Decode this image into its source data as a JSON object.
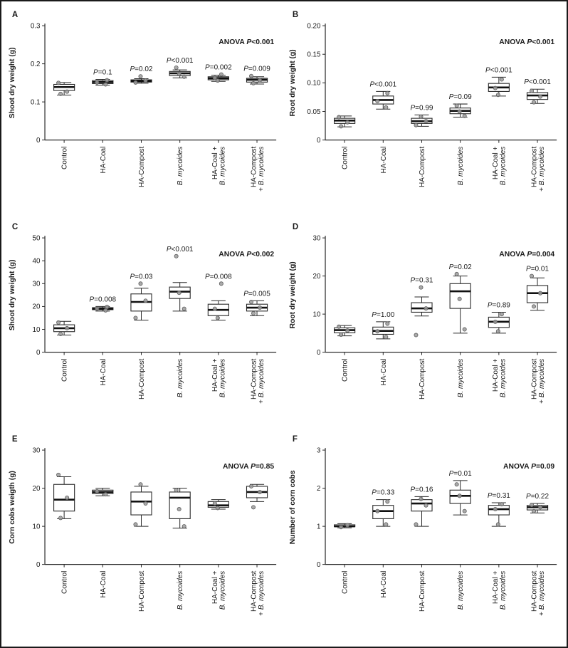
{
  "figure": {
    "border_color": "#1a1a1a",
    "background": "#ffffff"
  },
  "labels": {
    "anova_prefix": "ANOVA ",
    "p_symbol": "P"
  },
  "style": {
    "box_fill": "#ffffff",
    "box_stroke": "#2a2a2a",
    "median_color": "#111111",
    "point_fill": "#9b9b9b",
    "point_stroke": "#5f5f5f",
    "axis_color": "#2a2a2a",
    "text_color": "#1a1a1a"
  },
  "categories": [
    {
      "lines": [
        [
          {
            "t": "Control",
            "i": 0
          }
        ]
      ]
    },
    {
      "lines": [
        [
          {
            "t": "HA-Coal",
            "i": 0
          }
        ]
      ]
    },
    {
      "lines": [
        [
          {
            "t": "HA-Compost",
            "i": 0
          }
        ]
      ]
    },
    {
      "lines": [
        [
          {
            "t": "B. mycoides",
            "i": 1
          }
        ]
      ]
    },
    {
      "lines": [
        [
          {
            "t": "HA-Coal + ",
            "i": 0
          }
        ],
        [
          {
            "t": "B. mycoides",
            "i": 1
          }
        ]
      ]
    },
    {
      "lines": [
        [
          {
            "t": "HA-Compost",
            "i": 0
          }
        ],
        [
          {
            "t": "+ ",
            "i": 0
          },
          {
            "t": "B. mycoides",
            "i": 1
          }
        ]
      ]
    }
  ],
  "chart_data": [
    {
      "type": "boxplot",
      "panel_label": "A",
      "ylabel": "Shoot dry weight (g)",
      "ylim": [
        0,
        0.3
      ],
      "ytick_values": [
        0,
        0.1,
        0.2,
        0.3
      ],
      "yticks": [
        "0",
        "0.1",
        "0.2",
        "0.3"
      ],
      "anova": "<0.001",
      "boxes": [
        {
          "category": "Control",
          "whisker_low": 0.118,
          "q1": 0.13,
          "median": 0.139,
          "q3": 0.146,
          "whisker_high": 0.151,
          "points": [
            0.121,
            0.127,
            0.15
          ],
          "p": null
        },
        {
          "category": "HA-Coal",
          "whisker_low": 0.144,
          "q1": 0.148,
          "median": 0.152,
          "q3": 0.156,
          "whisker_high": 0.159,
          "points": [
            0.146,
            0.151,
            0.157
          ],
          "p": "=0.1"
        },
        {
          "category": "HA-Compost",
          "whisker_low": 0.149,
          "q1": 0.152,
          "median": 0.155,
          "q3": 0.158,
          "whisker_high": 0.161,
          "points": [
            0.151,
            0.156,
            0.167
          ],
          "p": "=0.02"
        },
        {
          "category": "B. mycoides",
          "whisker_low": 0.163,
          "q1": 0.169,
          "median": 0.175,
          "q3": 0.18,
          "whisker_high": 0.184,
          "points": [
            0.166,
            0.174,
            0.19
          ],
          "p": "<0.001"
        },
        {
          "category": "HA-Coal + B. mycoides",
          "whisker_low": 0.154,
          "q1": 0.158,
          "median": 0.162,
          "q3": 0.166,
          "whisker_high": 0.17,
          "points": [
            0.156,
            0.163,
            0.172
          ],
          "p": "=0.002"
        },
        {
          "category": "HA-Compost + B. mycoides",
          "whisker_low": 0.147,
          "q1": 0.152,
          "median": 0.158,
          "q3": 0.162,
          "whisker_high": 0.166,
          "points": [
            0.149,
            0.157,
            0.168
          ],
          "p": "=0.009"
        }
      ]
    },
    {
      "type": "boxplot",
      "panel_label": "B",
      "ylabel": "Root dry weight (g)",
      "ylim": [
        0,
        0.2
      ],
      "ytick_values": [
        0,
        0.05,
        0.1,
        0.15,
        0.2
      ],
      "yticks": [
        "0",
        "0.05",
        "0.10",
        "0.15",
        "0.20"
      ],
      "anova": "<0.001",
      "boxes": [
        {
          "category": "Control",
          "whisker_low": 0.023,
          "q1": 0.029,
          "median": 0.034,
          "q3": 0.038,
          "whisker_high": 0.042,
          "points": [
            0.024,
            0.031,
            0.04
          ],
          "p": null
        },
        {
          "category": "HA-Coal",
          "whisker_low": 0.054,
          "q1": 0.063,
          "median": 0.07,
          "q3": 0.077,
          "whisker_high": 0.085,
          "points": [
            0.057,
            0.068,
            0.082
          ],
          "p": "<0.001"
        },
        {
          "category": "HA-Compost",
          "whisker_low": 0.024,
          "q1": 0.029,
          "median": 0.033,
          "q3": 0.038,
          "whisker_high": 0.044,
          "points": [
            0.026,
            0.033,
            0.041
          ],
          "p": "=0.99"
        },
        {
          "category": "B. mycoides",
          "whisker_low": 0.04,
          "q1": 0.046,
          "median": 0.051,
          "q3": 0.056,
          "whisker_high": 0.063,
          "points": [
            0.042,
            0.05,
            0.06
          ],
          "p": "=0.09"
        },
        {
          "category": "HA-Coal + B. mycoides",
          "whisker_low": 0.077,
          "q1": 0.085,
          "median": 0.092,
          "q3": 0.099,
          "whisker_high": 0.11,
          "points": [
            0.079,
            0.091,
            0.106
          ],
          "p": "<0.001"
        },
        {
          "category": "HA-Compost + B. mycoides",
          "whisker_low": 0.064,
          "q1": 0.071,
          "median": 0.078,
          "q3": 0.083,
          "whisker_high": 0.089,
          "points": [
            0.066,
            0.076,
            0.086
          ],
          "p": "<0.001"
        }
      ]
    },
    {
      "type": "boxplot",
      "panel_label": "C",
      "ylabel": "Shoot dry weight (g)",
      "ylim": [
        0,
        50
      ],
      "ytick_values": [
        0,
        10,
        20,
        30,
        40,
        50
      ],
      "yticks": [
        "0",
        "10",
        "20",
        "30",
        "40",
        "50"
      ],
      "anova": "<0.002",
      "boxes": [
        {
          "category": "Control",
          "whisker_low": 7.5,
          "q1": 9,
          "median": 10.5,
          "q3": 12,
          "whisker_high": 13.5,
          "points": [
            8,
            10.5,
            13
          ],
          "p": null
        },
        {
          "category": "HA-Coal",
          "whisker_low": 18,
          "q1": 18.6,
          "median": 19,
          "q3": 19.5,
          "whisker_high": 20,
          "points": [
            18.3,
            19,
            19.8
          ],
          "p": "=0.008"
        },
        {
          "category": "HA-Compost",
          "whisker_low": 14,
          "q1": 18,
          "median": 22,
          "q3": 25.5,
          "whisker_high": 28,
          "points": [
            15,
            22.5,
            30
          ],
          "p": "=0.03"
        },
        {
          "category": "B. mycoides",
          "whisker_low": 18,
          "q1": 23.5,
          "median": 26.5,
          "q3": 28.5,
          "whisker_high": 30.5,
          "points": [
            19,
            26,
            42
          ],
          "p": "<0.001"
        },
        {
          "category": "HA-Coal + B. mycoides",
          "whisker_low": 14,
          "q1": 16,
          "median": 18.5,
          "q3": 21,
          "whisker_high": 22.5,
          "points": [
            15,
            19,
            30
          ],
          "p": "=0.008"
        },
        {
          "category": "HA-Compost + B. mycoides",
          "whisker_low": 16,
          "q1": 18,
          "median": 19.5,
          "q3": 21,
          "whisker_high": 22.5,
          "points": [
            17,
            19.5,
            22
          ],
          "p": "=0.005"
        }
      ]
    },
    {
      "type": "boxplot",
      "panel_label": "D",
      "ylabel": "Root dry weight (g)",
      "ylim": [
        0,
        30
      ],
      "ytick_values": [
        0,
        10,
        20,
        30
      ],
      "yticks": [
        "0",
        "10",
        "20",
        "30"
      ],
      "anova": "=0.004",
      "boxes": [
        {
          "category": "Control",
          "whisker_low": 4.3,
          "q1": 5.1,
          "median": 5.8,
          "q3": 6.4,
          "whisker_high": 7,
          "points": [
            4.6,
            5.7,
            6.7
          ],
          "p": null
        },
        {
          "category": "HA-Coal",
          "whisker_low": 3.5,
          "q1": 4.7,
          "median": 5.6,
          "q3": 6.6,
          "whisker_high": 8,
          "points": [
            4,
            5.5,
            7.5
          ],
          "p": "=1.00"
        },
        {
          "category": "HA-Compost",
          "whisker_low": 9.5,
          "q1": 10.5,
          "median": 11.5,
          "q3": 13,
          "whisker_high": 14.5,
          "points": [
            4.5,
            11.5,
            17
          ],
          "p": "=0.31"
        },
        {
          "category": "B. mycoides",
          "whisker_low": 5,
          "q1": 11.5,
          "median": 16,
          "q3": 18,
          "whisker_high": 20,
          "points": [
            6,
            14,
            20.5
          ],
          "p": "=0.02"
        },
        {
          "category": "HA-Coal + B. mycoides",
          "whisker_low": 5,
          "q1": 6.5,
          "median": 8,
          "q3": 9.2,
          "whisker_high": 10.5,
          "points": [
            5.5,
            8,
            10
          ],
          "p": "=0.89"
        },
        {
          "category": "HA-Compost + B. mycoides",
          "whisker_low": 11,
          "q1": 13,
          "median": 15.5,
          "q3": 17.5,
          "whisker_high": 19.5,
          "points": [
            12,
            15.5,
            20
          ],
          "p": "=0.01"
        }
      ]
    },
    {
      "type": "boxplot",
      "panel_label": "E",
      "ylabel": "Corn cobs weigth (g)",
      "ylim": [
        0,
        30
      ],
      "ytick_values": [
        0,
        10,
        20,
        30
      ],
      "yticks": [
        "0",
        "10",
        "20",
        "30"
      ],
      "anova": "=0.85",
      "boxes": [
        {
          "category": "Control",
          "whisker_low": 12,
          "q1": 14,
          "median": 17,
          "q3": 21,
          "whisker_high": 23,
          "points": [
            12.2,
            17.5,
            23.5
          ],
          "p": null
        },
        {
          "category": "HA-Coal",
          "whisker_low": 18,
          "q1": 18.6,
          "median": 19,
          "q3": 19.5,
          "whisker_high": 20,
          "points": [
            18.4,
            19.2
          ],
          "p": null
        },
        {
          "category": "HA-Compost",
          "whisker_low": 10,
          "q1": 13,
          "median": 16.5,
          "q3": 19,
          "whisker_high": 20.5,
          "points": [
            10.5,
            16,
            21
          ],
          "p": null
        },
        {
          "category": "B. mycoides",
          "whisker_low": 9.5,
          "q1": 12,
          "median": 17.5,
          "q3": 19,
          "whisker_high": 20,
          "points": [
            10,
            14.5,
            19.5
          ],
          "p": null
        },
        {
          "category": "HA-Coal + B. mycoides",
          "whisker_low": 14.5,
          "q1": 15,
          "median": 15.5,
          "q3": 16.5,
          "whisker_high": 17,
          "points": [
            14.8,
            16
          ],
          "p": null
        },
        {
          "category": "HA-Compost + B. mycoides",
          "whisker_low": 16.5,
          "q1": 17.5,
          "median": 19,
          "q3": 20.5,
          "whisker_high": 21,
          "points": [
            15,
            19,
            20.5
          ],
          "p": null
        }
      ]
    },
    {
      "type": "boxplot",
      "panel_label": "F",
      "ylabel": "Number of corn cobs",
      "ylim": [
        0,
        3
      ],
      "ytick_values": [
        0,
        1,
        2,
        3
      ],
      "yticks": [
        "0",
        "1",
        "2",
        "3"
      ],
      "anova": "=0.09",
      "boxes": [
        {
          "category": "Control",
          "whisker_low": 0.96,
          "q1": 0.99,
          "median": 1.0,
          "q3": 1.04,
          "whisker_high": 1.07,
          "points": [
            0.98,
            1.03
          ],
          "p": null
        },
        {
          "category": "HA-Coal",
          "whisker_low": 1.0,
          "q1": 1.2,
          "median": 1.4,
          "q3": 1.55,
          "whisker_high": 1.7,
          "points": [
            1.05,
            1.4,
            1.65
          ],
          "p": "=0.33"
        },
        {
          "category": "HA-Compost",
          "whisker_low": 1.0,
          "q1": 1.4,
          "median": 1.6,
          "q3": 1.7,
          "whisker_high": 1.78,
          "points": [
            1.05,
            1.55,
            1.72
          ],
          "p": "=0.16"
        },
        {
          "category": "B. mycoides",
          "whisker_low": 1.3,
          "q1": 1.6,
          "median": 1.8,
          "q3": 1.95,
          "whisker_high": 2.2,
          "points": [
            1.4,
            1.8,
            2.1
          ],
          "p": "=0.01"
        },
        {
          "category": "HA-Coal + B. mycoides",
          "whisker_low": 1.0,
          "q1": 1.3,
          "median": 1.45,
          "q3": 1.55,
          "whisker_high": 1.62,
          "points": [
            1.05,
            1.45,
            1.58
          ],
          "p": "=0.31"
        },
        {
          "category": "HA-Compost + B. mycoides",
          "whisker_low": 1.35,
          "q1": 1.43,
          "median": 1.5,
          "q3": 1.55,
          "whisker_high": 1.6,
          "points": [
            1.4,
            1.5,
            1.56
          ],
          "p": "=0.22"
        }
      ]
    }
  ]
}
